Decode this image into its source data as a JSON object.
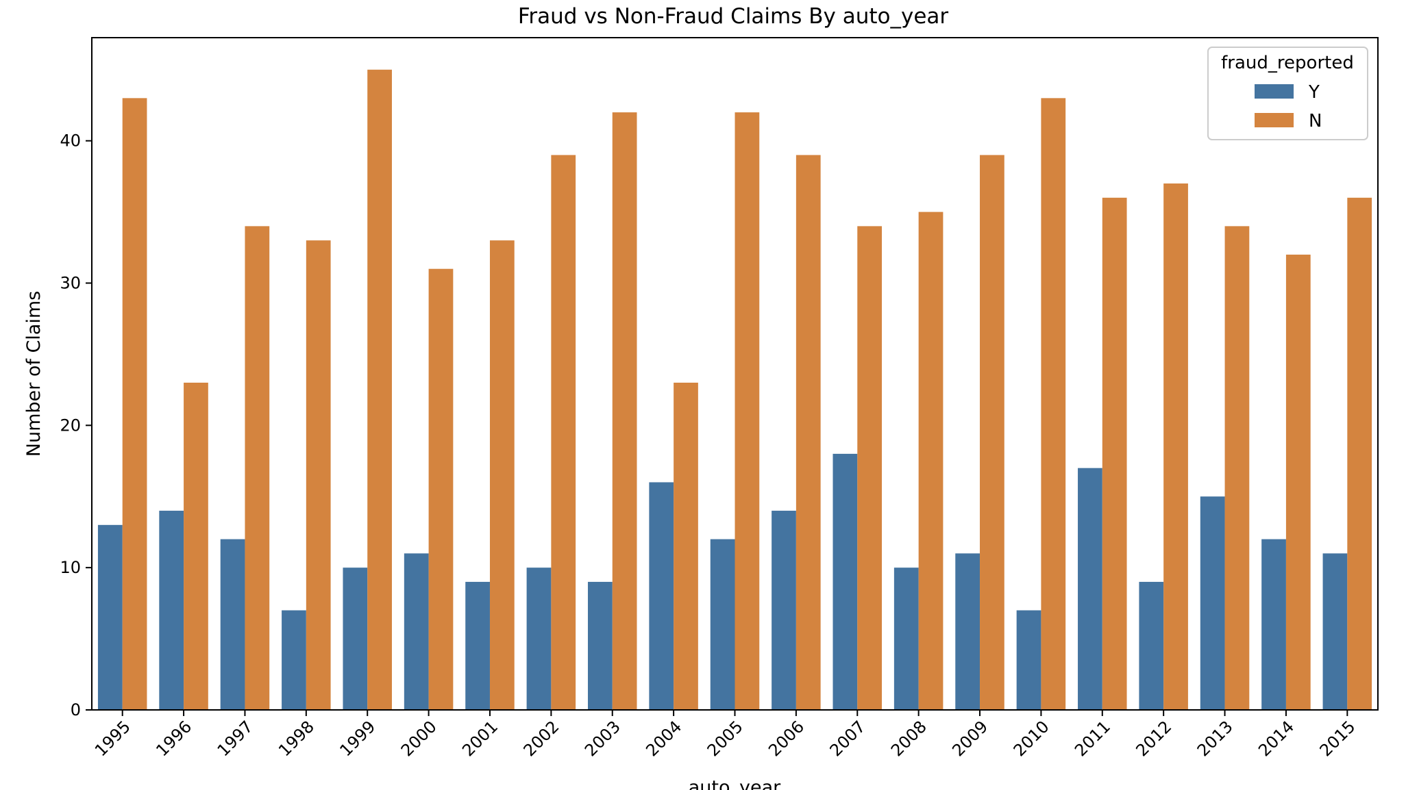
{
  "chart_data": {
    "type": "bar",
    "title": "Fraud vs Non-Fraud Claims By auto_year",
    "xlabel": "auto_year",
    "ylabel": "Number of Claims",
    "categories": [
      "1995",
      "1996",
      "1997",
      "1998",
      "1999",
      "2000",
      "2001",
      "2002",
      "2003",
      "2004",
      "2005",
      "2006",
      "2007",
      "2008",
      "2009",
      "2010",
      "2011",
      "2012",
      "2013",
      "2014",
      "2015"
    ],
    "series": [
      {
        "name": "Y",
        "color": "#4474a0",
        "values": [
          13,
          14,
          12,
          7,
          10,
          11,
          9,
          10,
          9,
          16,
          12,
          14,
          18,
          10,
          11,
          7,
          17,
          9,
          15,
          12,
          11
        ]
      },
      {
        "name": "N",
        "color": "#d4843f",
        "values": [
          43,
          23,
          34,
          33,
          45,
          31,
          33,
          39,
          42,
          23,
          42,
          39,
          34,
          35,
          39,
          43,
          36,
          37,
          34,
          32,
          36
        ]
      }
    ],
    "ylim": [
      0,
      47.25
    ],
    "yticks": [
      0,
      10,
      20,
      30,
      40
    ],
    "legend": {
      "title": "fraud_reported",
      "position": "top-right"
    },
    "grid": false
  }
}
